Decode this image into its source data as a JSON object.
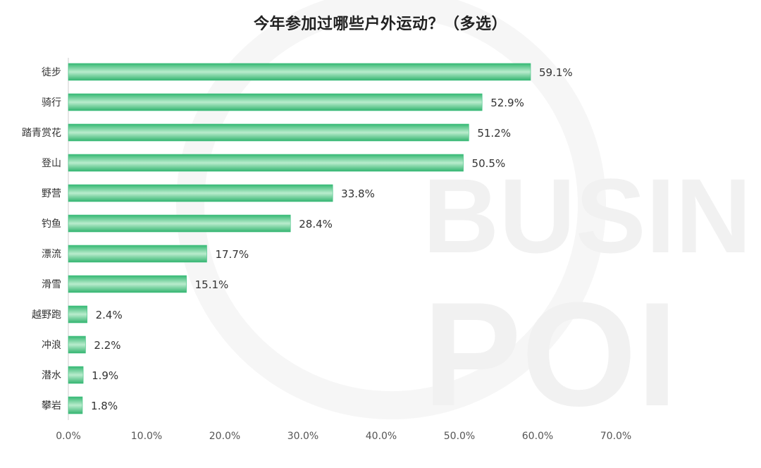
{
  "chart_data": {
    "type": "bar",
    "orientation": "horizontal",
    "title": "今年参加过哪些户外运动？（多选）",
    "categories": [
      "徒步",
      "骑行",
      "踏青赏花",
      "登山",
      "野营",
      "钓鱼",
      "漂流",
      "滑雪",
      "越野跑",
      "冲浪",
      "潜水",
      "攀岩"
    ],
    "values": [
      59.1,
      52.9,
      51.2,
      50.5,
      33.8,
      28.4,
      17.7,
      15.1,
      2.4,
      2.2,
      1.9,
      1.8
    ],
    "value_labels": [
      "59.1%",
      "52.9%",
      "51.2%",
      "50.5%",
      "33.8%",
      "28.4%",
      "17.7%",
      "15.1%",
      "2.4%",
      "2.2%",
      "1.9%",
      "1.8%"
    ],
    "xlim": [
      0,
      70
    ],
    "xticks": [
      "0.0%",
      "10.0%",
      "20.0%",
      "30.0%",
      "40.0%",
      "50.0%",
      "60.0%",
      "70.0%"
    ],
    "grid": false,
    "bar_color": "#3cc07e"
  },
  "watermark": {
    "line1": "BUSIN",
    "line2": "POI"
  }
}
